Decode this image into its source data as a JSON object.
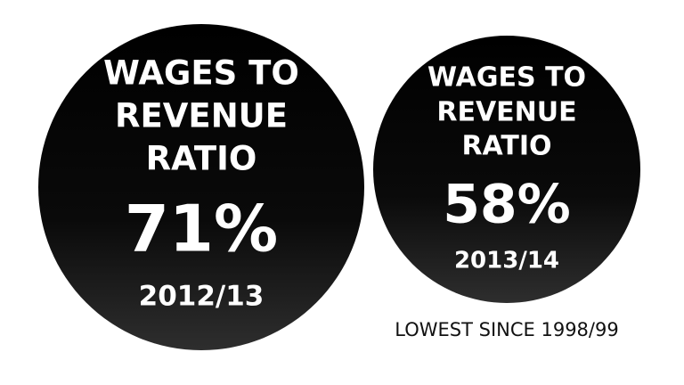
{
  "circles": [
    {
      "label": [
        "WAGES TO",
        "REVENUE",
        "RATIO"
      ],
      "value": "71%",
      "period": "2012/13"
    },
    {
      "label": [
        "WAGES TO",
        "REVENUE",
        "RATIO"
      ],
      "value": "58%",
      "period": "2013/14"
    }
  ],
  "note": "LOWEST SINCE 1998/99"
}
